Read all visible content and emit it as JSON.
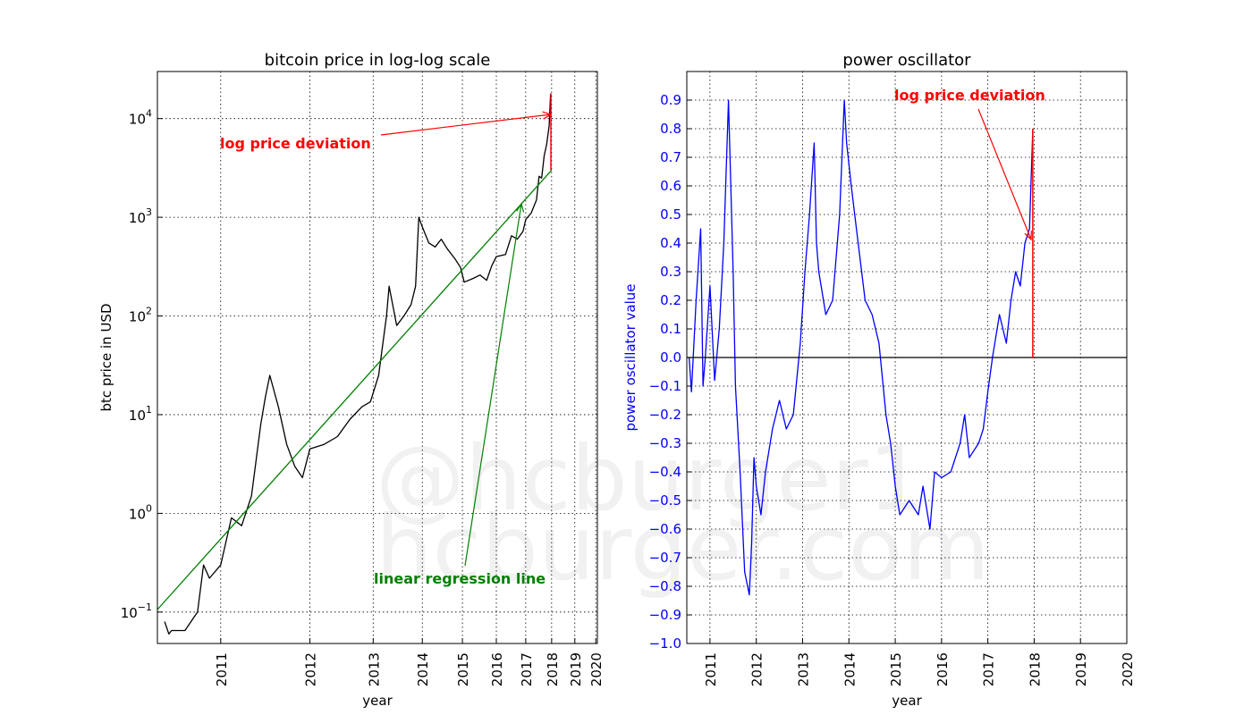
{
  "watermark": {
    "line1": "@hcburger1",
    "line2": "hcburger.com"
  },
  "chart_data": [
    {
      "type": "line",
      "title": "bitcoin price in log-log scale",
      "xlabel": "year",
      "ylabel": "btc price in USD",
      "x_scale": "log (years since 2009)",
      "y_scale": "log",
      "xlim": [
        "2010-07",
        "2020-01"
      ],
      "ylim": [
        0.048,
        30000
      ],
      "grid": true,
      "x_ticks": [
        "2011",
        "2012",
        "2013",
        "2014",
        "2015",
        "2016",
        "2017",
        "2018",
        "2019",
        "2020"
      ],
      "y_ticks": [
        {
          "base": "10",
          "exp": "−1",
          "value": 0.1
        },
        {
          "base": "10",
          "exp": "0",
          "value": 1
        },
        {
          "base": "10",
          "exp": "1",
          "value": 10
        },
        {
          "base": "10",
          "exp": "2",
          "value": 100
        },
        {
          "base": "10",
          "exp": "3",
          "value": 1000
        },
        {
          "base": "10",
          "exp": "4",
          "value": 10000
        }
      ],
      "series": [
        {
          "color": "#000000",
          "x": [
            2010.55,
            2010.58,
            2010.6,
            2010.7,
            2010.8,
            2010.85,
            2010.9,
            2011.0,
            2011.1,
            2011.2,
            2011.3,
            2011.4,
            2011.45,
            2011.5,
            2011.6,
            2011.7,
            2011.8,
            2011.9,
            2012.0,
            2012.2,
            2012.4,
            2012.6,
            2012.8,
            2012.95,
            2013.1,
            2013.25,
            2013.3,
            2013.45,
            2013.6,
            2013.75,
            2013.85,
            2013.92,
            2014.0,
            2014.15,
            2014.3,
            2014.45,
            2014.6,
            2014.8,
            2014.95,
            2015.05,
            2015.3,
            2015.5,
            2015.7,
            2015.85,
            2016.0,
            2016.3,
            2016.5,
            2016.7,
            2016.9,
            2017.0,
            2017.2,
            2017.4,
            2017.5,
            2017.6,
            2017.7,
            2017.8,
            2017.9,
            2017.96
          ],
          "y": [
            0.08,
            0.06,
            0.065,
            0.065,
            0.1,
            0.3,
            0.22,
            0.3,
            0.9,
            0.75,
            1.5,
            8.0,
            15.0,
            25.0,
            12.0,
            5.0,
            3.0,
            2.3,
            4.5,
            5.0,
            6.0,
            9.0,
            12.0,
            13.5,
            25.0,
            100.0,
            200.0,
            80.0,
            100.0,
            130.0,
            200.0,
            1000.0,
            800.0,
            550.0,
            500.0,
            600.0,
            480.0,
            380.0,
            310.0,
            220.0,
            240.0,
            260.0,
            230.0,
            320.0,
            400.0,
            420.0,
            650.0,
            600.0,
            720.0,
            950.0,
            1100.0,
            1500.0,
            2600.0,
            2500.0,
            4200.0,
            5500.0,
            8500.0,
            18000.0
          ]
        },
        {
          "name": "linear regression line",
          "color": "#008000",
          "x": [
            2010.5,
            2018.0
          ],
          "y": [
            0.106,
            3000.0
          ]
        }
      ],
      "annotations": [
        {
          "text": "log price deviation",
          "color": "#ff0000"
        },
        {
          "text": "linear regression line",
          "color": "#008000"
        }
      ]
    },
    {
      "type": "line",
      "title": "power oscillator",
      "xlabel": "year",
      "ylabel": "power oscillator value",
      "xlim": [
        "2010-07",
        "2020-01"
      ],
      "ylim": [
        -1.0,
        1.0
      ],
      "grid": true,
      "x_ticks": [
        "2011",
        "2012",
        "2013",
        "2014",
        "2015",
        "2016",
        "2017",
        "2018",
        "2019",
        "2020"
      ],
      "y_ticks": [
        "−1.0",
        "−0.9",
        "−0.8",
        "−0.7",
        "−0.6",
        "−0.5",
        "−0.4",
        "−0.3",
        "−0.2",
        "−0.1",
        "0.0",
        "0.1",
        "0.2",
        "0.3",
        "0.4",
        "0.5",
        "0.6",
        "0.7",
        "0.8",
        "0.9"
      ],
      "series": [
        {
          "color": "#0000ff",
          "x": [
            2010.55,
            2010.6,
            2010.7,
            2010.8,
            2010.85,
            2010.9,
            2011.0,
            2011.1,
            2011.2,
            2011.3,
            2011.4,
            2011.45,
            2011.5,
            2011.55,
            2011.65,
            2011.75,
            2011.85,
            2011.9,
            2011.95,
            2012.0,
            2012.1,
            2012.2,
            2012.35,
            2012.5,
            2012.65,
            2012.8,
            2012.95,
            2013.05,
            2013.15,
            2013.25,
            2013.3,
            2013.35,
            2013.5,
            2013.65,
            2013.8,
            2013.9,
            2013.95,
            2014.05,
            2014.2,
            2014.35,
            2014.5,
            2014.65,
            2014.8,
            2014.9,
            2015.0,
            2015.1,
            2015.3,
            2015.5,
            2015.6,
            2015.75,
            2015.85,
            2016.0,
            2016.2,
            2016.4,
            2016.5,
            2016.6,
            2016.8,
            2016.9,
            2017.0,
            2017.1,
            2017.25,
            2017.4,
            2017.5,
            2017.6,
            2017.7,
            2017.8,
            2017.9,
            2017.97
          ],
          "y": [
            0.0,
            -0.12,
            0.2,
            0.45,
            -0.1,
            0.0,
            0.25,
            -0.08,
            0.1,
            0.4,
            0.9,
            0.6,
            0.3,
            -0.1,
            -0.4,
            -0.75,
            -0.83,
            -0.65,
            -0.35,
            -0.45,
            -0.55,
            -0.4,
            -0.25,
            -0.15,
            -0.25,
            -0.2,
            0.05,
            0.3,
            0.5,
            0.75,
            0.4,
            0.3,
            0.15,
            0.2,
            0.5,
            0.9,
            0.75,
            0.6,
            0.4,
            0.2,
            0.15,
            0.05,
            -0.2,
            -0.3,
            -0.45,
            -0.55,
            -0.5,
            -0.55,
            -0.45,
            -0.6,
            -0.4,
            -0.42,
            -0.4,
            -0.3,
            -0.2,
            -0.35,
            -0.3,
            -0.25,
            -0.12,
            0.0,
            0.15,
            0.05,
            0.2,
            0.3,
            0.25,
            0.4,
            0.45,
            0.8
          ]
        },
        {
          "color": "#000000",
          "x": [
            2010.5,
            2020.0
          ],
          "y": [
            0.0,
            0.0
          ]
        }
      ],
      "annotations": [
        {
          "text": "log price deviation",
          "color": "#ff0000"
        }
      ]
    }
  ]
}
